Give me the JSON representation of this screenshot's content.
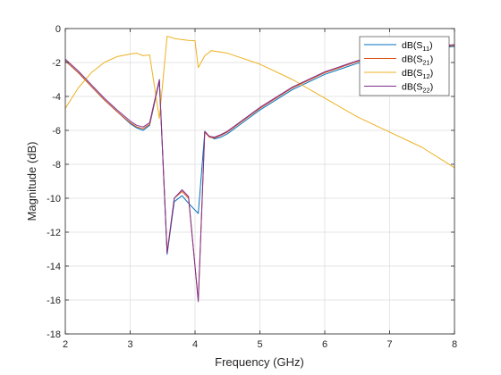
{
  "chart_data": {
    "type": "line",
    "title": "",
    "xlabel": "Frequency (GHz)",
    "ylabel": "Magnitude (dB)",
    "xlim": [
      2,
      8
    ],
    "ylim": [
      -18,
      0
    ],
    "xticks": [
      2,
      3,
      4,
      5,
      6,
      7,
      8
    ],
    "yticks": [
      0,
      -2,
      -4,
      -6,
      -8,
      -10,
      -12,
      -14,
      -16,
      -18
    ],
    "grid": true,
    "legend_position": "top-right",
    "series": [
      {
        "name": "dB(S11)",
        "base": "dB(S",
        "sub": "11",
        "color": "#0072BD",
        "x": [
          2.0,
          2.2,
          2.4,
          2.6,
          2.8,
          3.0,
          3.1,
          3.2,
          3.3,
          3.45,
          3.57,
          3.68,
          3.8,
          3.9,
          4.05,
          4.15,
          4.22,
          4.3,
          4.4,
          4.5,
          4.75,
          5.0,
          5.5,
          6.0,
          6.5,
          7.0,
          7.5,
          8.0
        ],
        "y": [
          -1.9,
          -2.6,
          -3.4,
          -4.2,
          -4.9,
          -5.6,
          -5.85,
          -6.0,
          -5.7,
          -3.1,
          -13.3,
          -10.2,
          -9.85,
          -10.3,
          -10.9,
          -6.1,
          -6.35,
          -6.5,
          -6.4,
          -6.2,
          -5.5,
          -4.8,
          -3.6,
          -2.7,
          -2.05,
          -1.55,
          -1.2,
          -1.05
        ]
      },
      {
        "name": "dB(S21)",
        "base": "dB(S",
        "sub": "21",
        "color": "#D95319",
        "x": [
          2.0,
          2.2,
          2.4,
          2.6,
          2.8,
          3.0,
          3.1,
          3.2,
          3.3,
          3.45,
          3.57,
          3.68,
          3.8,
          3.9,
          4.05,
          4.15,
          4.22,
          4.3,
          4.4,
          4.5,
          4.75,
          5.0,
          5.5,
          6.0,
          6.5,
          7.0,
          7.5,
          8.0
        ],
        "y": [
          -1.9,
          -2.6,
          -3.4,
          -4.2,
          -4.9,
          -5.55,
          -5.8,
          -5.9,
          -5.65,
          -3.05,
          -13.2,
          -10.0,
          -9.6,
          -10.0,
          -16.0,
          -6.1,
          -6.4,
          -6.45,
          -6.3,
          -6.1,
          -5.4,
          -4.7,
          -3.5,
          -2.6,
          -1.95,
          -1.45,
          -1.15,
          -1.0
        ]
      },
      {
        "name": "dB(S12)",
        "base": "dB(S",
        "sub": "12",
        "color": "#EDB120",
        "x": [
          2.0,
          2.2,
          2.4,
          2.6,
          2.8,
          3.0,
          3.1,
          3.2,
          3.3,
          3.45,
          3.57,
          3.7,
          3.8,
          3.9,
          4.0,
          4.05,
          4.15,
          4.25,
          4.5,
          5.0,
          5.5,
          6.0,
          6.5,
          7.0,
          7.5,
          8.0
        ],
        "y": [
          -4.7,
          -3.5,
          -2.6,
          -2.0,
          -1.65,
          -1.5,
          -1.45,
          -1.6,
          -1.55,
          -5.3,
          -0.45,
          -0.6,
          -0.65,
          -0.7,
          -0.72,
          -2.3,
          -1.6,
          -1.3,
          -1.45,
          -2.1,
          -3.0,
          -4.1,
          -5.2,
          -6.1,
          -7.0,
          -8.2
        ]
      },
      {
        "name": "dB(S22)",
        "base": "dB(S",
        "sub": "22",
        "color": "#7E2F8E",
        "x": [
          2.0,
          2.2,
          2.4,
          2.6,
          2.8,
          3.0,
          3.1,
          3.2,
          3.3,
          3.45,
          3.57,
          3.68,
          3.8,
          3.9,
          4.05,
          4.15,
          4.22,
          4.3,
          4.4,
          4.5,
          4.75,
          5.0,
          5.5,
          6.0,
          6.5,
          7.0,
          7.5,
          8.0
        ],
        "y": [
          -1.8,
          -2.5,
          -3.3,
          -4.1,
          -4.8,
          -5.45,
          -5.7,
          -5.8,
          -5.55,
          -3.0,
          -13.25,
          -10.0,
          -9.5,
          -9.9,
          -16.1,
          -6.05,
          -6.35,
          -6.4,
          -6.25,
          -6.05,
          -5.35,
          -4.65,
          -3.45,
          -2.55,
          -1.9,
          -1.4,
          -1.1,
          -0.95
        ]
      }
    ]
  }
}
